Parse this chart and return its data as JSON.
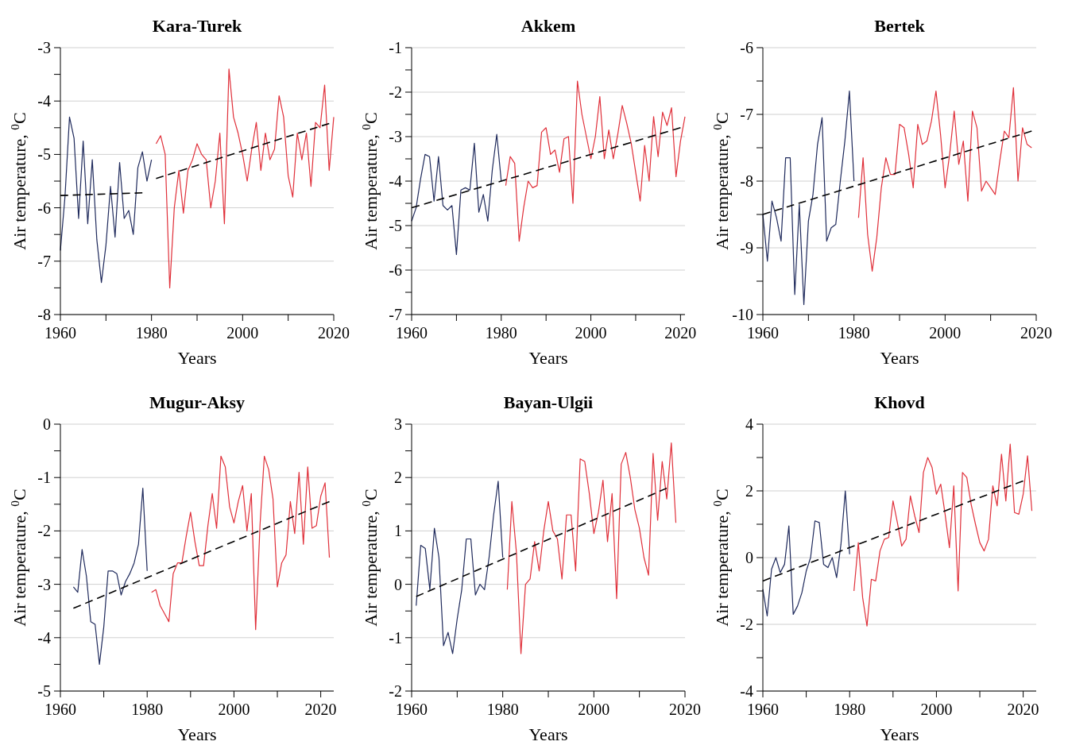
{
  "chart_data": [
    {
      "type": "line",
      "title": "Kara-Turek",
      "xlabel": "Years",
      "ylabel": "Air temperature, $^{0}$C",
      "xlim": [
        1960,
        2020
      ],
      "ylim": [
        -8,
        -3
      ],
      "grid": "y",
      "xticks": [
        1960,
        {
          "value": 1970,
          "label": null
        },
        1980,
        {
          "value": 1990,
          "label": null
        },
        2000,
        {
          "value": 2010,
          "label": null
        },
        2020
      ],
      "yticks": [
        -8,
        {
          "value": -7.5,
          "label": null
        },
        -7,
        {
          "value": -6.5,
          "label": null
        },
        -6,
        {
          "value": -5.5,
          "label": null
        },
        -5,
        {
          "value": -4.5,
          "label": null
        },
        -4,
        {
          "value": -3.5,
          "label": null
        },
        -3
      ],
      "series": [
        {
          "color": "#1f2a5c",
          "x": [
            1960,
            1961,
            1962,
            1963,
            1964,
            1965,
            1966,
            1967,
            1968,
            1969,
            1970,
            1971,
            1972,
            1973,
            1974,
            1975,
            1976,
            1977,
            1978,
            1979,
            1980
          ],
          "values": [
            -6.8,
            -5.8,
            -4.3,
            -4.7,
            -6.2,
            -4.75,
            -6.3,
            -5.1,
            -6.6,
            -7.4,
            -6.7,
            -5.6,
            -6.55,
            -5.15,
            -6.2,
            -6.05,
            -6.5,
            -5.25,
            -4.95,
            -5.5,
            -5.1
          ]
        },
        {
          "color": "#e0303a",
          "x": [
            1981,
            1982,
            1983,
            1984,
            1985,
            1986,
            1987,
            1988,
            1989,
            1990,
            1991,
            1992,
            1993,
            1994,
            1995,
            1996,
            1997,
            1998,
            1999,
            2000,
            2001,
            2002,
            2003,
            2004,
            2005,
            2006,
            2007,
            2008,
            2009,
            2010,
            2011,
            2012,
            2013,
            2014,
            2015,
            2016,
            2017,
            2018,
            2019,
            2020
          ],
          "values": [
            -4.8,
            -4.65,
            -5.0,
            -7.5,
            -6.0,
            -5.3,
            -6.1,
            -5.3,
            -5.1,
            -4.8,
            -5.0,
            -5.1,
            -6.0,
            -5.5,
            -4.6,
            -6.3,
            -3.4,
            -4.3,
            -4.6,
            -5.0,
            -5.5,
            -4.9,
            -4.4,
            -5.3,
            -4.6,
            -5.1,
            -4.9,
            -3.9,
            -4.3,
            -5.4,
            -5.8,
            -4.6,
            -5.1,
            -4.6,
            -5.6,
            -4.4,
            -4.5,
            -3.7,
            -5.3,
            -4.3
          ]
        },
        {
          "type": "line",
          "line_style": "dashed",
          "color": "#000000",
          "x": [
            1960,
            1978
          ],
          "values": [
            -5.77,
            -5.72
          ]
        },
        {
          "type": "line",
          "line_style": "dashed",
          "color": "#000000",
          "x": [
            1981,
            2019
          ],
          "values": [
            -5.45,
            -4.42
          ]
        }
      ]
    },
    {
      "type": "line",
      "title": "Akkem",
      "xlabel": "Years",
      "ylabel": "Air temperature, $^{0}$C",
      "xlim": [
        1960,
        2021
      ],
      "ylim": [
        -7,
        -1
      ],
      "grid": "y",
      "xticks": [
        1960,
        {
          "value": 1970,
          "label": null
        },
        1980,
        {
          "value": 1990,
          "label": null
        },
        2000,
        {
          "value": 2010,
          "label": null
        },
        2020
      ],
      "yticks": [
        -7,
        {
          "value": -6.5,
          "label": null
        },
        -6,
        {
          "value": -5.5,
          "label": null
        },
        -5,
        {
          "value": -4.5,
          "label": null
        },
        -4,
        {
          "value": -3.5,
          "label": null
        },
        -3,
        {
          "value": -2.5,
          "label": null
        },
        -2,
        {
          "value": -1.5,
          "label": null
        },
        -1
      ],
      "series": [
        {
          "color": "#1f2a5c",
          "x": [
            1960,
            1961,
            1962,
            1963,
            1964,
            1965,
            1966,
            1967,
            1968,
            1969,
            1970,
            1971,
            1972,
            1973,
            1974,
            1975,
            1976,
            1977,
            1978,
            1979,
            1980
          ],
          "values": [
            -4.9,
            -4.6,
            -3.95,
            -3.4,
            -3.45,
            -4.45,
            -3.45,
            -4.55,
            -4.65,
            -4.55,
            -5.65,
            -4.2,
            -4.15,
            -4.2,
            -3.15,
            -4.7,
            -4.3,
            -4.9,
            -3.75,
            -2.95,
            -4.0
          ]
        },
        {
          "color": "#e0303a",
          "x": [
            1981,
            1982,
            1983,
            1984,
            1985,
            1986,
            1987,
            1988,
            1989,
            1990,
            1991,
            1992,
            1993,
            1994,
            1995,
            1996,
            1997,
            1998,
            1999,
            2000,
            2001,
            2002,
            2003,
            2004,
            2005,
            2006,
            2007,
            2008,
            2009,
            2010,
            2011,
            2012,
            2013,
            2014,
            2015,
            2016,
            2017,
            2018,
            2019,
            2020,
            2021
          ],
          "values": [
            -4.1,
            -3.45,
            -3.6,
            -5.35,
            -4.6,
            -4.0,
            -4.15,
            -4.1,
            -2.9,
            -2.8,
            -3.4,
            -3.3,
            -3.8,
            -3.05,
            -3.0,
            -4.5,
            -1.75,
            -2.5,
            -3.0,
            -3.5,
            -3.0,
            -2.1,
            -3.5,
            -2.85,
            -3.5,
            -2.95,
            -2.3,
            -2.7,
            -3.15,
            -3.8,
            -4.45,
            -3.2,
            -4.0,
            -2.55,
            -3.45,
            -2.45,
            -2.75,
            -2.35,
            -3.9,
            -3.1,
            -2.55
          ]
        },
        {
          "type": "line",
          "line_style": "dashed",
          "color": "#000000",
          "x": [
            1960,
            2020
          ],
          "values": [
            -4.6,
            -2.8
          ]
        }
      ]
    },
    {
      "type": "line",
      "title": "Bertek",
      "xlabel": "Years",
      "ylabel": "Air temperature, $^{0}$C",
      "xlim": [
        1960,
        2020
      ],
      "ylim": [
        -10,
        -6
      ],
      "grid": "y",
      "xticks": [
        1960,
        {
          "value": 1970,
          "label": null
        },
        1980,
        {
          "value": 1990,
          "label": null
        },
        2000,
        {
          "value": 2010,
          "label": null
        },
        2020
      ],
      "yticks": [
        -10,
        {
          "value": -9.5,
          "label": null
        },
        -9,
        {
          "value": -8.5,
          "label": null
        },
        -8,
        {
          "value": -7.5,
          "label": null
        },
        -7,
        {
          "value": -6.5,
          "label": null
        },
        -6
      ],
      "series": [
        {
          "color": "#1f2a5c",
          "x": [
            1960,
            1961,
            1962,
            1963,
            1964,
            1965,
            1966,
            1967,
            1968,
            1969,
            1970,
            1971,
            1972,
            1973,
            1974,
            1975,
            1976,
            1977,
            1978,
            1979,
            1980
          ],
          "values": [
            -8.5,
            -9.2,
            -8.3,
            -8.55,
            -8.9,
            -7.65,
            -7.65,
            -9.7,
            -8.35,
            -9.85,
            -8.6,
            -8.2,
            -7.45,
            -7.05,
            -8.9,
            -8.7,
            -8.65,
            -8.0,
            -7.4,
            -6.65,
            -8.0
          ]
        },
        {
          "color": "#e0303a",
          "x": [
            1981,
            1982,
            1983,
            1984,
            1985,
            1986,
            1987,
            1988,
            1989,
            1990,
            1991,
            1992,
            1993,
            1994,
            1995,
            1996,
            1997,
            1998,
            1999,
            2000,
            2001,
            2002,
            2003,
            2004,
            2005,
            2006,
            2007,
            2008,
            2009,
            2010,
            2011,
            2012,
            2013,
            2014,
            2015,
            2016,
            2017,
            2018,
            2019
          ],
          "values": [
            -8.55,
            -7.65,
            -8.8,
            -9.35,
            -8.85,
            -8.1,
            -7.65,
            -7.9,
            -7.9,
            -7.15,
            -7.2,
            -7.6,
            -8.1,
            -7.15,
            -7.45,
            -7.4,
            -7.1,
            -6.65,
            -7.3,
            -8.1,
            -7.6,
            -6.95,
            -7.75,
            -7.4,
            -8.3,
            -6.95,
            -7.2,
            -8.15,
            -8.0,
            -8.1,
            -8.2,
            -7.7,
            -7.25,
            -7.35,
            -6.6,
            -8.0,
            -7.2,
            -7.45,
            -7.5
          ]
        },
        {
          "type": "line",
          "line_style": "dashed",
          "color": "#000000",
          "x": [
            1960,
            2019
          ],
          "values": [
            -8.5,
            -7.25
          ]
        }
      ]
    },
    {
      "type": "line",
      "title": "Mugur-Aksy",
      "xlabel": "Years",
      "ylabel": "Air temperature, $^{0}$C",
      "xlim": [
        1960,
        2023
      ],
      "ylim": [
        -5,
        0
      ],
      "grid": "y",
      "xticks": [
        1960,
        {
          "value": 1970,
          "label": null
        },
        1980,
        {
          "value": 1990,
          "label": null
        },
        2000,
        {
          "value": 2010,
          "label": null
        },
        2020
      ],
      "yticks": [
        -5,
        {
          "value": -4.5,
          "label": null
        },
        -4,
        {
          "value": -3.5,
          "label": null
        },
        -3,
        {
          "value": -2.5,
          "label": null
        },
        -2,
        {
          "value": -1.5,
          "label": null
        },
        -1,
        {
          "value": -0.5,
          "label": null
        },
        0
      ],
      "series": [
        {
          "color": "#1f2a5c",
          "x": [
            1963,
            1964,
            1965,
            1966,
            1967,
            1968,
            1969,
            1970,
            1971,
            1972,
            1973,
            1974,
            1975,
            1976,
            1977,
            1978,
            1979,
            1980
          ],
          "values": [
            -3.05,
            -3.15,
            -2.35,
            -2.85,
            -3.7,
            -3.75,
            -4.5,
            -3.8,
            -2.75,
            -2.75,
            -2.8,
            -3.2,
            -2.95,
            -2.8,
            -2.6,
            -2.25,
            -1.2,
            -2.75
          ]
        },
        {
          "color": "#e0303a",
          "x": [
            1981,
            1982,
            1983,
            1984,
            1985,
            1986,
            1987,
            1988,
            1989,
            1990,
            1991,
            1992,
            1993,
            1994,
            1995,
            1996,
            1997,
            1998,
            1999,
            2000,
            2001,
            2002,
            2003,
            2004,
            2005,
            2006,
            2007,
            2008,
            2009,
            2010,
            2011,
            2012,
            2013,
            2014,
            2015,
            2016,
            2017,
            2018,
            2019,
            2020,
            2021,
            2022
          ],
          "values": [
            -3.15,
            -3.1,
            -3.4,
            -3.55,
            -3.7,
            -2.8,
            -2.6,
            -2.6,
            -2.1,
            -1.65,
            -2.2,
            -2.65,
            -2.65,
            -1.9,
            -1.3,
            -1.95,
            -0.6,
            -0.8,
            -1.55,
            -1.85,
            -1.45,
            -1.15,
            -2.0,
            -1.3,
            -3.85,
            -1.9,
            -0.6,
            -0.85,
            -1.4,
            -3.05,
            -2.6,
            -2.45,
            -1.45,
            -2.05,
            -0.9,
            -2.25,
            -0.8,
            -1.95,
            -1.9,
            -1.35,
            -1.1,
            -2.5
          ]
        },
        {
          "type": "line",
          "line_style": "dashed",
          "color": "#000000",
          "x": [
            1963,
            2022
          ],
          "values": [
            -3.45,
            -1.45
          ]
        }
      ]
    },
    {
      "type": "line",
      "title": "Bayan-Ulgii",
      "xlabel": "Years",
      "ylabel": "Air temperature, $^{0}$C",
      "xlim": [
        1960,
        2020
      ],
      "ylim": [
        -2,
        3
      ],
      "grid": "y",
      "xticks": [
        1960,
        {
          "value": 1970,
          "label": null
        },
        1980,
        {
          "value": 1990,
          "label": null
        },
        2000,
        {
          "value": 2010,
          "label": null
        },
        2020
      ],
      "yticks": [
        -2,
        {
          "value": -1.5,
          "label": null
        },
        -1,
        {
          "value": -0.5,
          "label": null
        },
        0,
        {
          "value": 0.5,
          "label": null
        },
        1,
        {
          "value": 1.5,
          "label": null
        },
        2,
        {
          "value": 2.5,
          "label": null
        },
        3
      ],
      "series": [
        {
          "color": "#1f2a5c",
          "x": [
            1961,
            1962,
            1963,
            1964,
            1965,
            1966,
            1967,
            1968,
            1969,
            1970,
            1971,
            1972,
            1973,
            1974,
            1975,
            1976,
            1977,
            1978,
            1979,
            1980
          ],
          "values": [
            -0.4,
            0.73,
            0.67,
            -0.1,
            1.05,
            0.5,
            -1.15,
            -0.9,
            -1.3,
            -0.65,
            -0.1,
            0.85,
            0.85,
            -0.2,
            0.0,
            -0.1,
            0.5,
            1.3,
            1.93,
            0.5
          ]
        },
        {
          "color": "#e0303a",
          "x": [
            1981,
            1982,
            1983,
            1984,
            1985,
            1986,
            1987,
            1988,
            1989,
            1990,
            1991,
            1992,
            1993,
            1994,
            1995,
            1996,
            1997,
            1998,
            1999,
            2000,
            2001,
            2002,
            2003,
            2004,
            2005,
            2006,
            2007,
            2008,
            2009,
            2010,
            2011,
            2012,
            2013,
            2014,
            2015,
            2016,
            2017,
            2018
          ],
          "values": [
            -0.1,
            1.55,
            0.6,
            -1.3,
            0.0,
            0.1,
            0.8,
            0.25,
            1.0,
            1.55,
            1.0,
            0.85,
            0.1,
            1.3,
            1.3,
            0.25,
            2.35,
            2.3,
            1.7,
            0.95,
            1.35,
            1.95,
            0.8,
            1.7,
            -0.27,
            2.25,
            2.47,
            2.0,
            1.4,
            1.05,
            0.5,
            0.17,
            2.45,
            1.2,
            2.3,
            1.6,
            2.65,
            1.15
          ]
        },
        {
          "type": "line",
          "line_style": "dashed",
          "color": "#000000",
          "x": [
            1961,
            2016
          ],
          "values": [
            -0.23,
            1.8
          ]
        }
      ]
    },
    {
      "type": "line",
      "title": "Khovd",
      "xlabel": "Years",
      "ylabel": "Air temperature, $^{0}$C",
      "xlim": [
        1960,
        2023
      ],
      "ylim": [
        -4,
        4
      ],
      "grid": "y",
      "xticks": [
        1960,
        {
          "value": 1970,
          "label": null
        },
        1980,
        {
          "value": 1990,
          "label": null
        },
        2000,
        {
          "value": 2010,
          "label": null
        },
        2020
      ],
      "yticks": [
        -4,
        {
          "value": -3,
          "label": null
        },
        -2,
        {
          "value": -1,
          "label": null
        },
        0,
        {
          "value": 1,
          "label": null
        },
        2,
        {
          "value": 3,
          "label": null
        },
        4
      ],
      "series": [
        {
          "color": "#1f2a5c",
          "x": [
            1960,
            1961,
            1962,
            1963,
            1964,
            1965,
            1966,
            1967,
            1968,
            1969,
            1970,
            1971,
            1972,
            1973,
            1974,
            1975,
            1976,
            1977,
            1978,
            1979,
            1980
          ],
          "values": [
            -0.95,
            -1.75,
            -0.35,
            0.0,
            -0.45,
            -0.2,
            0.95,
            -1.7,
            -1.45,
            -1.05,
            -0.4,
            0.0,
            1.1,
            1.05,
            -0.2,
            -0.3,
            0.0,
            -0.6,
            0.4,
            2.0,
            0.1
          ]
        },
        {
          "color": "#e0303a",
          "x": [
            1981,
            1982,
            1983,
            1984,
            1985,
            1986,
            1987,
            1988,
            1989,
            1990,
            1991,
            1992,
            1993,
            1994,
            1995,
            1996,
            1997,
            1998,
            1999,
            2000,
            2001,
            2002,
            2003,
            2004,
            2005,
            2006,
            2007,
            2008,
            2009,
            2010,
            2011,
            2012,
            2013,
            2014,
            2015,
            2016,
            2017,
            2018,
            2019,
            2020,
            2021,
            2022
          ],
          "values": [
            -1.0,
            0.45,
            -1.2,
            -2.05,
            -0.65,
            -0.7,
            0.2,
            0.55,
            0.6,
            1.7,
            1.05,
            0.35,
            0.55,
            1.85,
            1.25,
            0.75,
            2.55,
            3.0,
            2.7,
            1.9,
            2.2,
            1.3,
            0.3,
            2.15,
            -1.0,
            2.55,
            2.4,
            1.6,
            1.0,
            0.45,
            0.2,
            0.55,
            2.15,
            1.55,
            3.1,
            1.7,
            3.4,
            1.35,
            1.3,
            1.9,
            3.05,
            1.4
          ]
        },
        {
          "type": "line",
          "line_style": "dashed",
          "color": "#000000",
          "x": [
            1960,
            2020
          ],
          "values": [
            -0.7,
            2.3
          ]
        }
      ]
    }
  ]
}
